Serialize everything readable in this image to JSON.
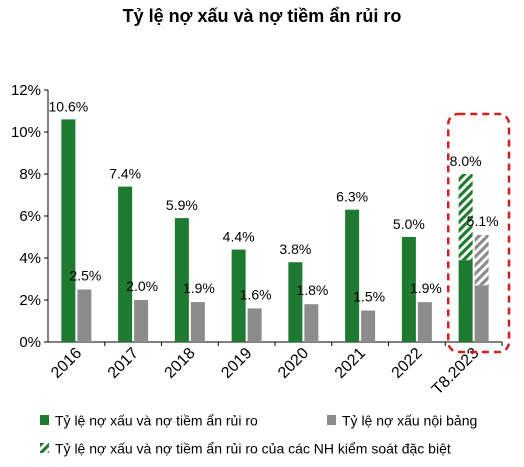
{
  "chart_data": {
    "type": "bar",
    "title": "Tỷ lệ nợ xấu và nợ tiềm ẩn rủi ro",
    "categories": [
      "2016",
      "2017",
      "2018",
      "2019",
      "2020",
      "2021",
      "2022",
      "T8.2023"
    ],
    "ylim": [
      0,
      12
    ],
    "yticks": [
      "0%",
      "2%",
      "4%",
      "6%",
      "8%",
      "10%",
      "12%"
    ],
    "series": [
      {
        "name": "Tỷ lệ nợ xấu và nợ tiềm ẩn rủi ro",
        "color": "#1e7a30",
        "values": [
          10.6,
          7.4,
          5.9,
          4.4,
          3.8,
          6.3,
          5.0,
          8.0
        ],
        "labels": [
          "10.6%",
          "7.4%",
          "5.9%",
          "4.4%",
          "3.8%",
          "6.3%",
          "5.0%",
          "8.0%"
        ]
      },
      {
        "name": "Tỷ lệ nợ xấu nội bảng",
        "color": "#8c8c8c",
        "values": [
          2.5,
          2.0,
          1.9,
          1.6,
          1.8,
          1.5,
          1.9,
          5.1
        ],
        "labels": [
          "2.5%",
          "2.0%",
          "1.9%",
          "1.6%",
          "1.8%",
          "1.5%",
          "1.9%",
          "5.1%"
        ]
      }
    ],
    "special_portion": {
      "name": "Tỷ lệ nợ xấu và nợ tiềm ẩn rủi ro của các NH kiểm soát đặc biệt",
      "category": "T8.2023",
      "green_base": 3.9,
      "grey_base": 2.7
    },
    "highlight": {
      "category": "T8.2023",
      "style": "red dashed rounded box"
    },
    "legend_position": "bottom",
    "grid": false
  }
}
